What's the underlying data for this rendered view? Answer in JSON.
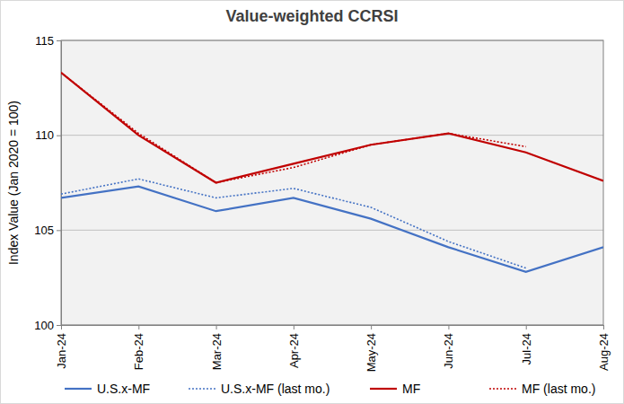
{
  "chart_data": {
    "type": "line",
    "title": "Value-weighted CCRSI",
    "y_label": "Index Value (Jan 2020 = 100)",
    "categories": [
      "Jan-24",
      "Feb-24",
      "Mar-24",
      "Apr-24",
      "May-24",
      "Jun-24",
      "Jul-24",
      "Aug-24"
    ],
    "series": [
      {
        "name": "U.S.x-MF",
        "color": "#4472c4",
        "line_style": "solid",
        "values": [
          106.7,
          107.3,
          106.0,
          106.7,
          105.6,
          104.1,
          102.8,
          104.1
        ]
      },
      {
        "name": "U.S.x-MF (last mo.)",
        "color": "#4472c4",
        "line_style": "dotted",
        "values": [
          106.9,
          107.7,
          106.7,
          107.2,
          106.2,
          104.4,
          103.0,
          null
        ]
      },
      {
        "name": "MF",
        "color": "#c00000",
        "line_style": "solid",
        "values": [
          113.3,
          110.0,
          107.5,
          108.5,
          109.5,
          110.1,
          109.1,
          107.6
        ]
      },
      {
        "name": "MF (last mo.)",
        "color": "#c00000",
        "line_style": "dotted",
        "values": [
          113.3,
          110.1,
          107.5,
          108.3,
          109.5,
          110.1,
          109.4,
          null
        ]
      }
    ],
    "ylim": [
      100,
      115
    ],
    "yticks": [
      100,
      105,
      110,
      115
    ],
    "grid": true,
    "legend": "bottom"
  }
}
